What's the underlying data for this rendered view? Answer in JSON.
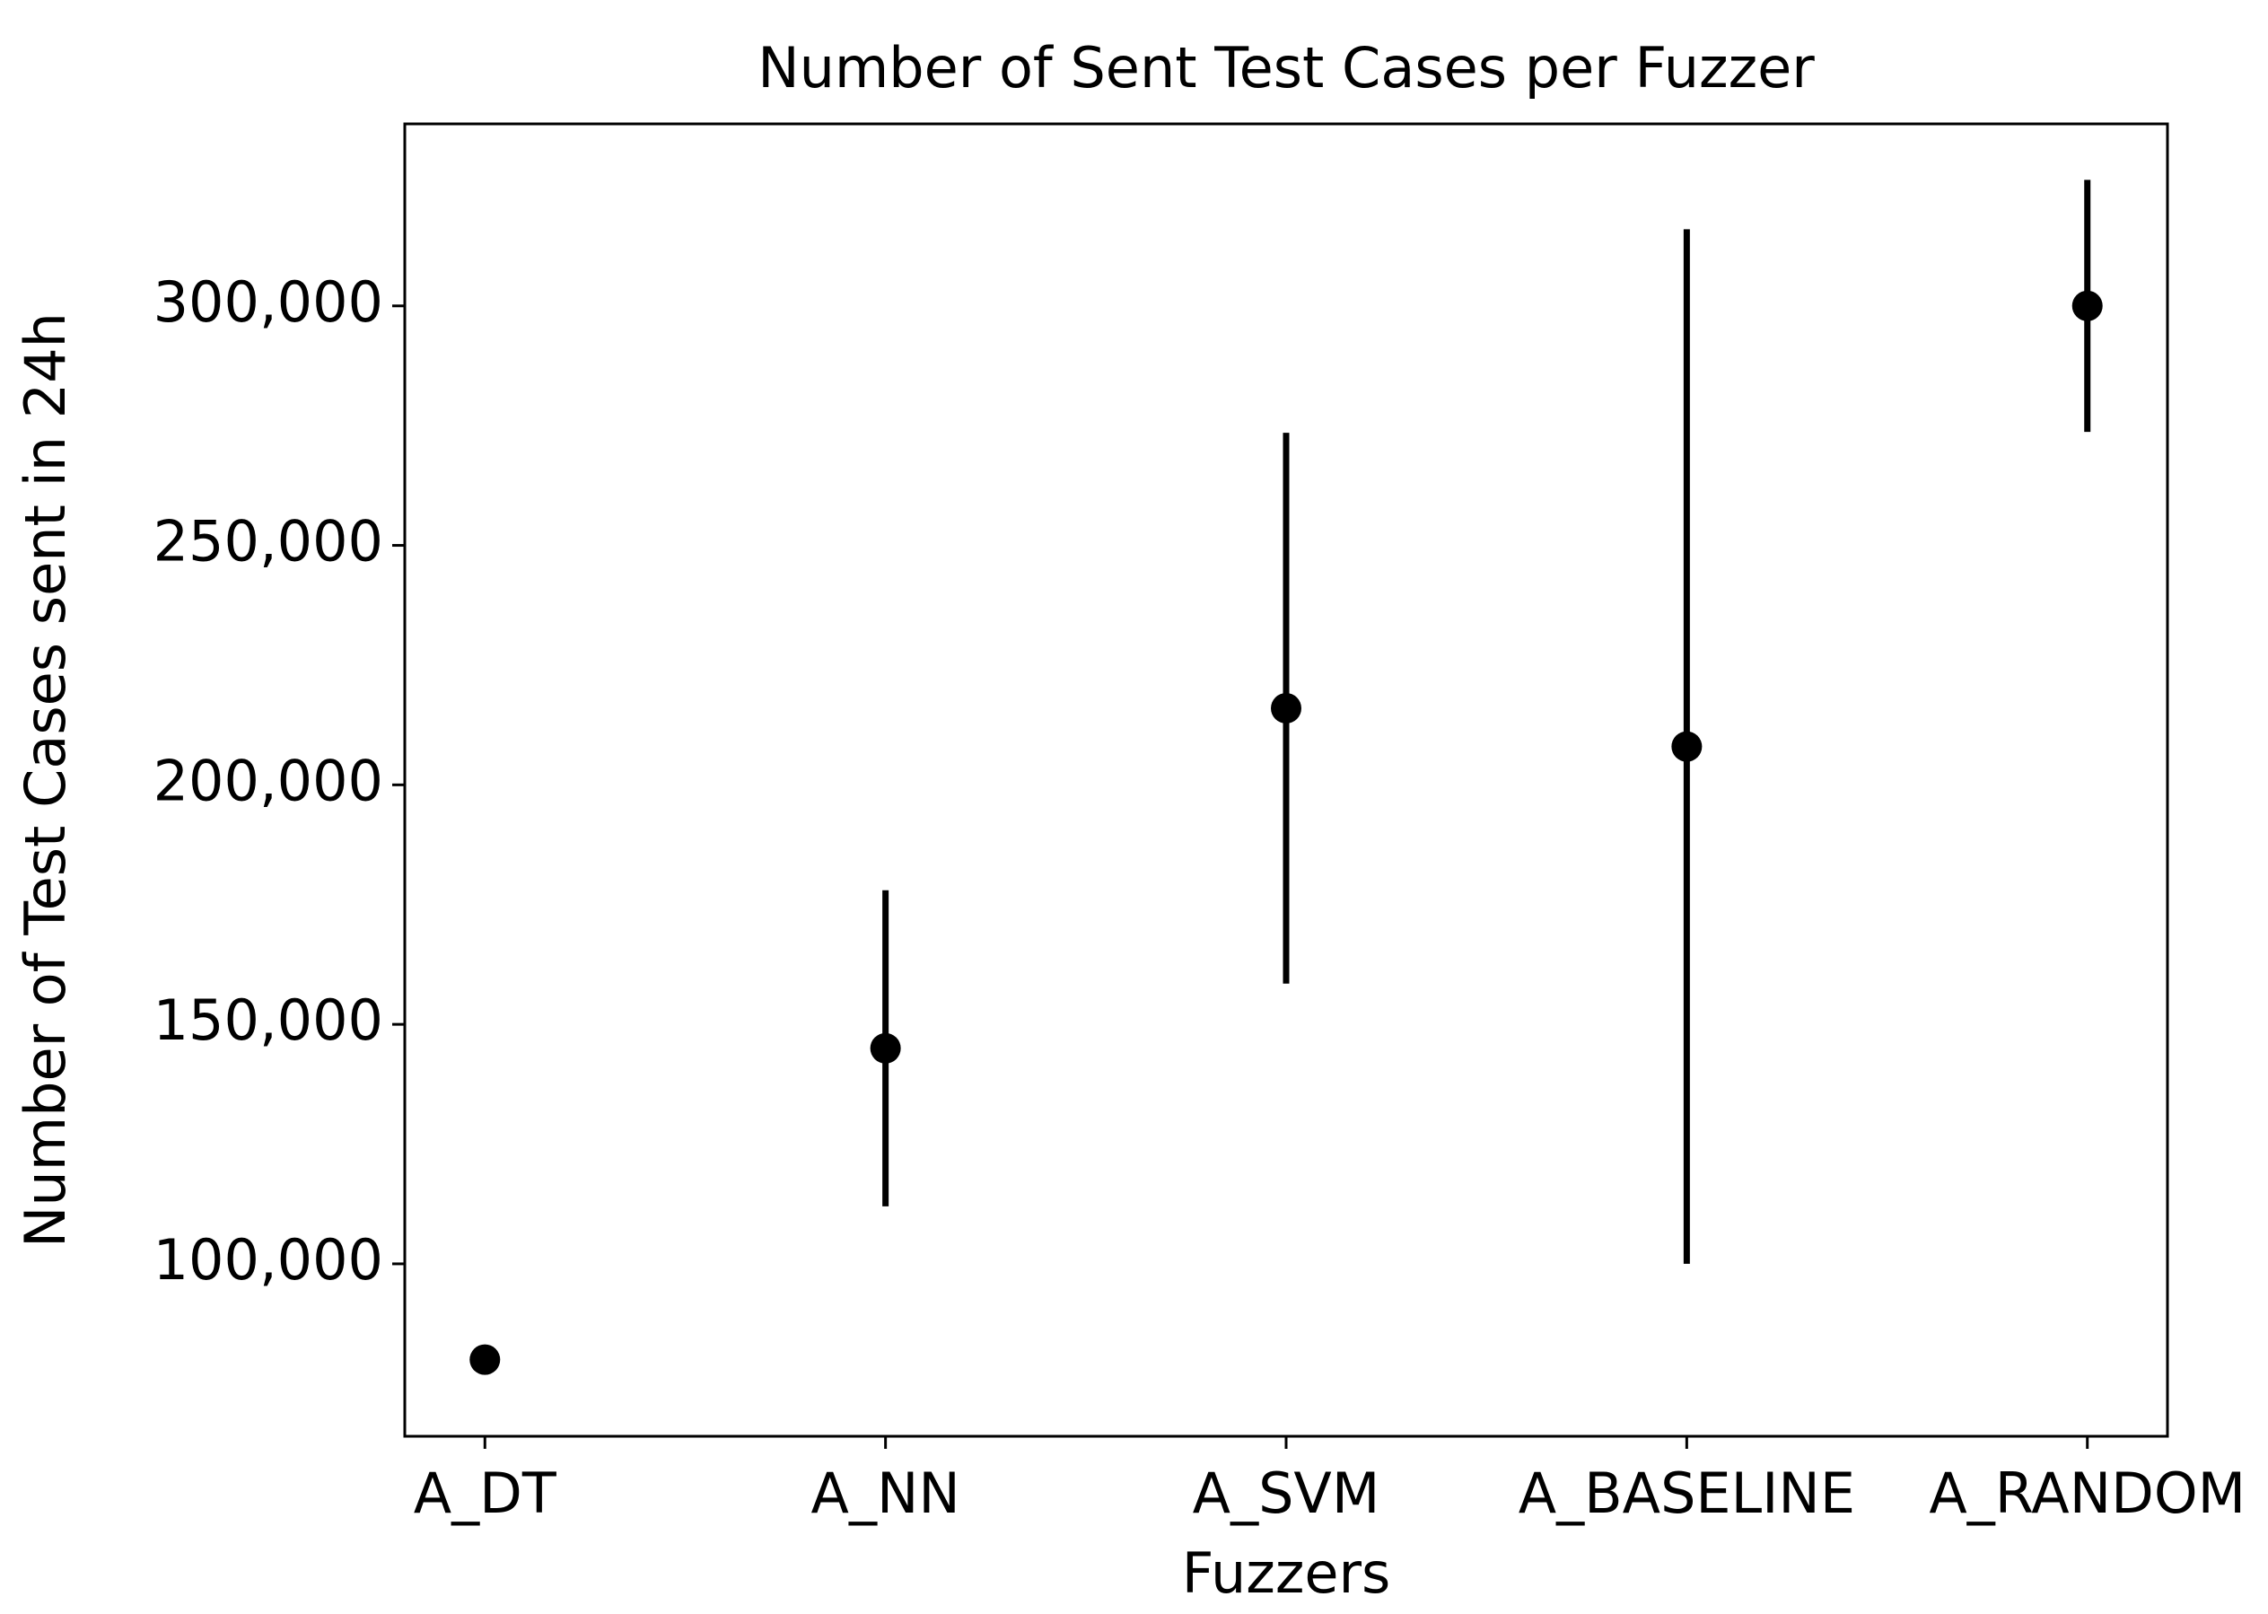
{
  "chart_data": {
    "type": "errorbar",
    "title": "Number of Sent Test Cases per Fuzzer",
    "x_label": "Fuzzers",
    "y_label": "Number of Test Cases sent in 24h",
    "categories": [
      "A_DT",
      "A_NN",
      "A_SVM",
      "A_BASELINE",
      "A_RANDOM"
    ],
    "values": [
      80000,
      145000,
      216000,
      208000,
      300000
    ],
    "errors": [
      0,
      33000,
      57500,
      108000,
      26300
    ],
    "color": "#000000",
    "ylim": [
      64000,
      338000
    ],
    "yticks": [
      {
        "value": 100000,
        "label": "100,000"
      },
      {
        "value": 150000,
        "label": "150,000"
      },
      {
        "value": 200000,
        "label": "200,000"
      },
      {
        "value": 250000,
        "label": "250,000"
      },
      {
        "value": 300000,
        "label": "300,000"
      }
    ],
    "grid": false
  }
}
